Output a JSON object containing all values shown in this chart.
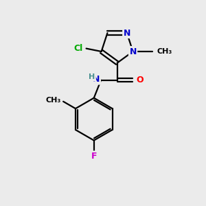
{
  "background_color": "#ebebeb",
  "bond_color": "#000000",
  "atom_colors": {
    "N": "#0000cc",
    "O": "#ff0000",
    "Cl": "#00aa00",
    "F": "#cc00cc",
    "C": "#000000",
    "H": "#4a9090"
  },
  "figsize": [
    3.0,
    3.0
  ],
  "dpi": 100,
  "lw": 1.6
}
